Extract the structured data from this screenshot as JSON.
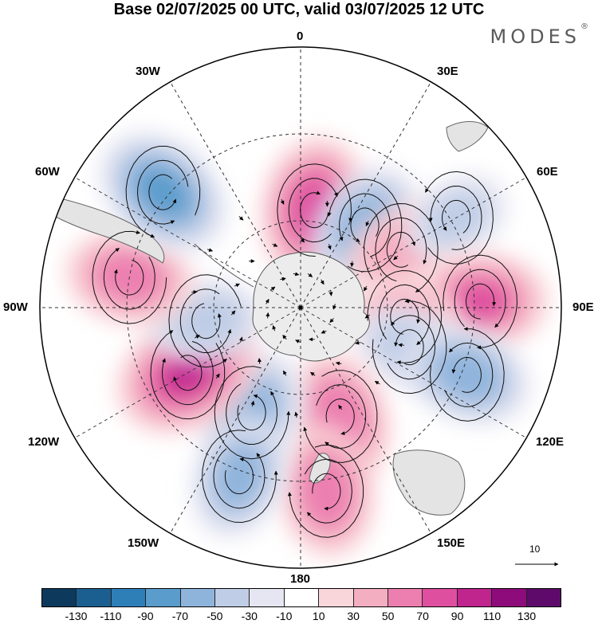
{
  "title": "Base 02/07/2025 00 UTC, valid 03/07/2025 12 UTC",
  "logo": {
    "text": "MODES",
    "mark": "®"
  },
  "longitude_labels": {
    "n0": "0",
    "e30": "30E",
    "e60": "60E",
    "e90": "90E",
    "e120": "120E",
    "e150": "150E",
    "s180": "180",
    "w150": "150W",
    "w120": "120W",
    "w90": "90W",
    "w60": "60W",
    "w30": "30W"
  },
  "vector_reference": {
    "value": "10"
  },
  "colorbar": {
    "colors": [
      "#0d3a5c",
      "#1a5f8f",
      "#2e7fb8",
      "#5a9ccc",
      "#8fb4dc",
      "#bfcde6",
      "#e6e6f2",
      "#ffffff",
      "#f9d6d9",
      "#f4aec1",
      "#ec7fb0",
      "#df4f9f",
      "#c0248d",
      "#8e0b7b",
      "#5e0a6b"
    ],
    "labels": [
      "-130",
      "-110",
      "-90",
      "-70",
      "-50",
      "-30",
      "-10",
      "10",
      "30",
      "50",
      "70",
      "90",
      "110",
      "130"
    ]
  },
  "anomaly_centers": [
    {
      "lon": 8,
      "colat": 34,
      "value": 95
    },
    {
      "lon": 38,
      "colat": 36,
      "value": -70
    },
    {
      "lon": 60,
      "colat": 40,
      "value": 50
    },
    {
      "lon": 60,
      "colat": 62,
      "value": -40
    },
    {
      "lon": 88,
      "colat": 62,
      "value": 80
    },
    {
      "lon": 95,
      "colat": 36,
      "value": 45
    },
    {
      "lon": 110,
      "colat": 40,
      "value": -45
    },
    {
      "lon": 112,
      "colat": 62,
      "value": -70
    },
    {
      "lon": 160,
      "colat": 40,
      "value": 75
    },
    {
      "lon": 172,
      "colat": 64,
      "value": 75
    },
    {
      "lon": 205,
      "colat": 40,
      "value": -70
    },
    {
      "lon": 200,
      "colat": 62,
      "value": -65
    },
    {
      "lon": 240,
      "colat": 45,
      "value": 100
    },
    {
      "lon": 262,
      "colat": 33,
      "value": -50
    },
    {
      "lon": 280,
      "colat": 60,
      "value": 70
    },
    {
      "lon": 310,
      "colat": 62,
      "value": -85
    }
  ]
}
